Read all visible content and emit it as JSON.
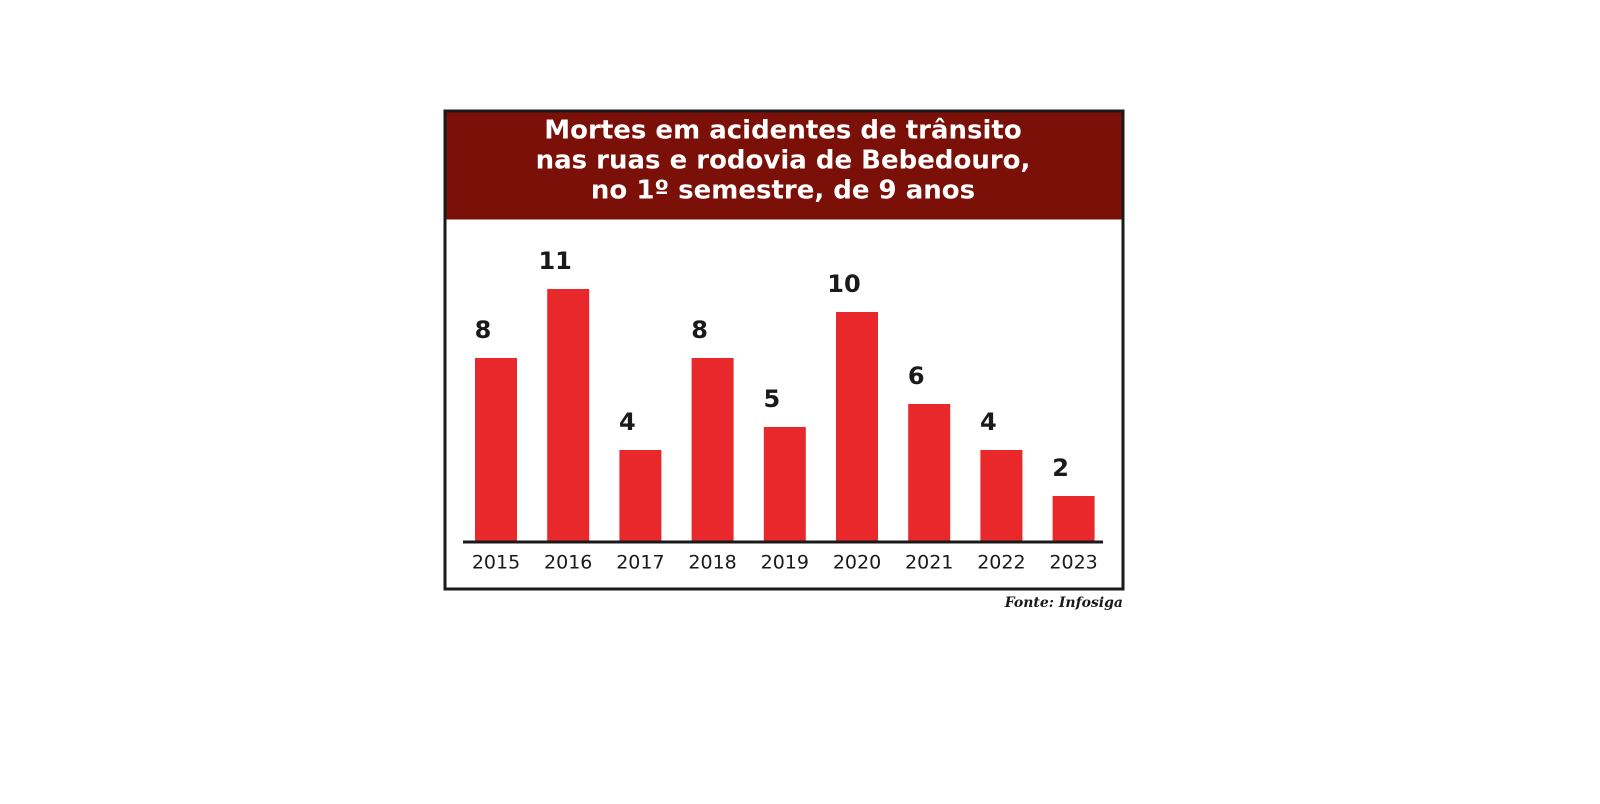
{
  "chart_data": {
    "type": "bar",
    "title": [
      "Mortes em acidentes de trânsito",
      "nas ruas e rodovia de Bebedouro,",
      "no 1º semestre, de 9 anos"
    ],
    "categories": [
      "2015",
      "2016",
      "2017",
      "2018",
      "2019",
      "2020",
      "2021",
      "2022",
      "2023"
    ],
    "values": [
      8,
      11,
      4,
      8,
      5,
      10,
      6,
      4,
      2
    ],
    "color": "#e8282a",
    "source": "Fonte: Infosiga"
  }
}
